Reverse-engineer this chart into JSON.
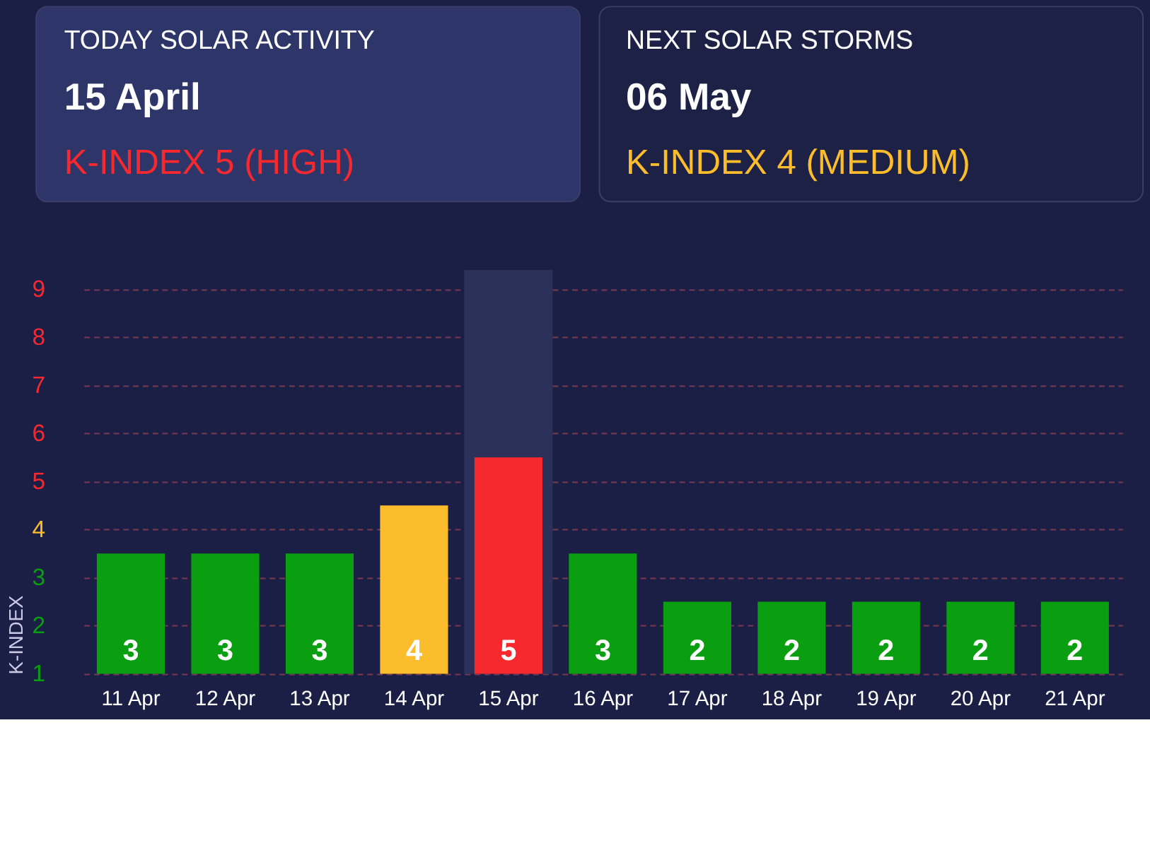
{
  "chart_data": [
    {
      "type": "other",
      "annotations": [
        "TODAY SOLAR ACTIVITY",
        "15 April",
        "K-INDEX 5 (HIGH)",
        "NEXT SOLAR STORMS",
        "06 May",
        "K-INDEX 4 (MEDIUM)"
      ]
    },
    {
      "type": "bar",
      "ylabel": "K-INDEX",
      "categories": [
        "11 Apr",
        "12 Apr",
        "13 Apr",
        "14 Apr",
        "15 Apr",
        "16 Apr",
        "17 Apr",
        "18 Apr",
        "19 Apr",
        "20 Apr",
        "21 Apr"
      ],
      "values": [
        3,
        3,
        3,
        4,
        5,
        3,
        2,
        2,
        2,
        2,
        2
      ],
      "colors": [
        "#0a9f10",
        "#0a9f10",
        "#0a9f10",
        "#fbbd2b",
        "#f7282e",
        "#0a9f10",
        "#0a9f10",
        "#0a9f10",
        "#0a9f10",
        "#0a9f10",
        "#0a9f10"
      ],
      "data_labels": true,
      "ylim": [
        0.5,
        8.9
      ],
      "yticks": [
        {
          "value": 0.5,
          "label": "1"
        },
        {
          "value": 1.5,
          "label": "2"
        },
        {
          "value": 2.5,
          "label": "3"
        },
        {
          "value": 3.5,
          "label": "4"
        },
        {
          "value": 4.5,
          "label": "5"
        },
        {
          "value": 5.5,
          "label": "6"
        },
        {
          "value": 6.5,
          "label": "7"
        },
        {
          "value": 7.5,
          "label": "8"
        },
        {
          "value": 8.5,
          "label": "9"
        }
      ],
      "grid": "y",
      "bands": [
        {
          "axis": "x",
          "from": "15 Apr",
          "to": "15 Apr",
          "color": "#2c3159"
        }
      ]
    }
  ]
}
